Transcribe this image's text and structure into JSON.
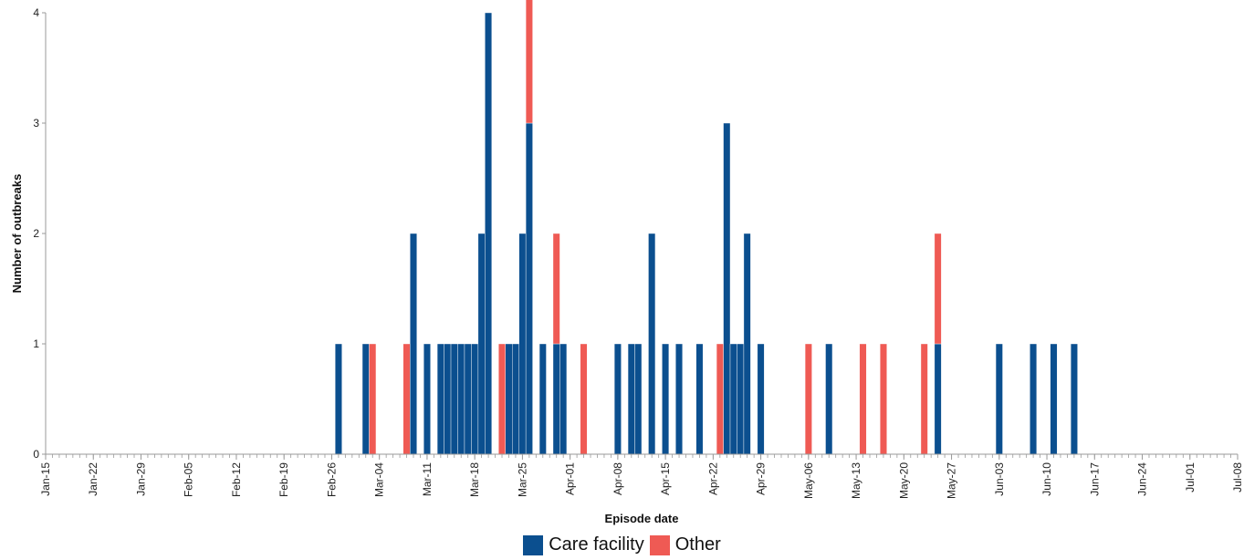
{
  "chart_data": {
    "type": "bar",
    "stacked": true,
    "xlabel": "Episode date",
    "ylabel": "Number of outbreaks",
    "ylim": [
      0,
      4
    ],
    "y_ticks": [
      "0",
      "1",
      "2",
      "3",
      "4"
    ],
    "x_range": [
      "2020-01-15",
      "2020-07-08"
    ],
    "x_tick_labels": [
      "Jan-15",
      "Jan-22",
      "Jan-29",
      "Feb-05",
      "Feb-12",
      "Feb-19",
      "Feb-26",
      "Mar-04",
      "Mar-11",
      "Mar-18",
      "Mar-25",
      "Apr-01",
      "Apr-08",
      "Apr-15",
      "Apr-22",
      "Apr-29",
      "May-06",
      "May-13",
      "May-20",
      "May-27",
      "Jun-03",
      "Jun-10",
      "Jun-17",
      "Jun-24",
      "Jul-01",
      "Jul-08"
    ],
    "legend_position": "bottom",
    "grid": false,
    "colors": {
      "Care facility": "#0b4f8f",
      "Other": "#ef5a54"
    },
    "series": [
      {
        "name": "Care facility",
        "points": [
          {
            "x": "2020-02-27",
            "y": 1
          },
          {
            "x": "2020-03-02",
            "y": 1
          },
          {
            "x": "2020-03-09",
            "y": 2
          },
          {
            "x": "2020-03-11",
            "y": 1
          },
          {
            "x": "2020-03-13",
            "y": 1
          },
          {
            "x": "2020-03-14",
            "y": 1
          },
          {
            "x": "2020-03-15",
            "y": 1
          },
          {
            "x": "2020-03-16",
            "y": 1
          },
          {
            "x": "2020-03-17",
            "y": 1
          },
          {
            "x": "2020-03-18",
            "y": 1
          },
          {
            "x": "2020-03-19",
            "y": 2
          },
          {
            "x": "2020-03-20",
            "y": 4
          },
          {
            "x": "2020-03-23",
            "y": 1
          },
          {
            "x": "2020-03-24",
            "y": 1
          },
          {
            "x": "2020-03-25",
            "y": 2
          },
          {
            "x": "2020-03-26",
            "y": 3
          },
          {
            "x": "2020-03-28",
            "y": 1
          },
          {
            "x": "2020-03-30",
            "y": 1
          },
          {
            "x": "2020-03-31",
            "y": 1
          },
          {
            "x": "2020-04-08",
            "y": 1
          },
          {
            "x": "2020-04-10",
            "y": 1
          },
          {
            "x": "2020-04-11",
            "y": 1
          },
          {
            "x": "2020-04-13",
            "y": 2
          },
          {
            "x": "2020-04-15",
            "y": 1
          },
          {
            "x": "2020-04-17",
            "y": 1
          },
          {
            "x": "2020-04-20",
            "y": 1
          },
          {
            "x": "2020-04-24",
            "y": 3
          },
          {
            "x": "2020-04-25",
            "y": 1
          },
          {
            "x": "2020-04-26",
            "y": 1
          },
          {
            "x": "2020-04-27",
            "y": 2
          },
          {
            "x": "2020-04-29",
            "y": 1
          },
          {
            "x": "2020-05-09",
            "y": 1
          },
          {
            "x": "2020-05-25",
            "y": 1
          },
          {
            "x": "2020-06-03",
            "y": 1
          },
          {
            "x": "2020-06-08",
            "y": 1
          },
          {
            "x": "2020-06-11",
            "y": 1
          },
          {
            "x": "2020-06-14",
            "y": 1
          }
        ]
      },
      {
        "name": "Other",
        "points": [
          {
            "x": "2020-03-03",
            "y": 1
          },
          {
            "x": "2020-03-08",
            "y": 1
          },
          {
            "x": "2020-03-22",
            "y": 1
          },
          {
            "x": "2020-03-26",
            "y": 2
          },
          {
            "x": "2020-03-30",
            "y": 1
          },
          {
            "x": "2020-04-03",
            "y": 1
          },
          {
            "x": "2020-04-23",
            "y": 1
          },
          {
            "x": "2020-05-06",
            "y": 1
          },
          {
            "x": "2020-05-14",
            "y": 1
          },
          {
            "x": "2020-05-17",
            "y": 1
          },
          {
            "x": "2020-05-23",
            "y": 1
          },
          {
            "x": "2020-05-25",
            "y": 1
          }
        ]
      }
    ]
  }
}
